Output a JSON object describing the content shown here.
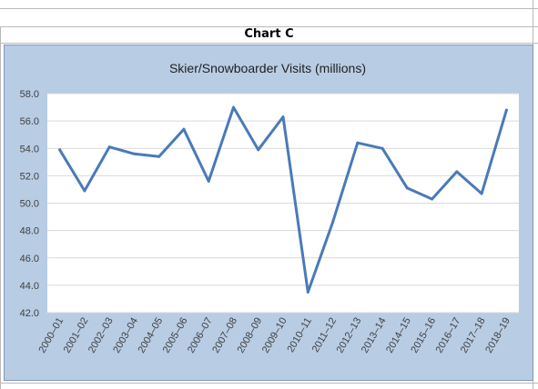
{
  "header": {
    "chart_label": "Chart C"
  },
  "chart_data": {
    "type": "line",
    "title": "Skier/Snowboarder Visits (millions)",
    "xlabel": "",
    "ylabel": "",
    "ylim": [
      42.0,
      58.0
    ],
    "y_ticks": [
      "58.0",
      "56.0",
      "54.0",
      "52.0",
      "50.0",
      "48.0",
      "46.0",
      "44.0",
      "42.0"
    ],
    "grid": true,
    "legend": "none",
    "colors": {
      "line": "#4a7ab8",
      "plot_bg": "#ffffff",
      "chart_bg": "#b8cce4",
      "grid": "#d9d9d9"
    },
    "categories": [
      "2000–01",
      "2001–02",
      "2002–03",
      "2003–04",
      "2004–05",
      "2005–06",
      "2006–07",
      "2007–08",
      "2008–09",
      "2009–10",
      "2010–11",
      "2011–12",
      "2012–13",
      "2013–14",
      "2014–15",
      "2015–16",
      "2016–17",
      "2017–18",
      "2018–19"
    ],
    "values": [
      53.9,
      50.9,
      54.1,
      53.6,
      53.4,
      55.4,
      51.6,
      57.0,
      53.9,
      56.3,
      43.5,
      48.6,
      54.4,
      54.0,
      51.1,
      50.3,
      52.3,
      50.7,
      56.8
    ]
  }
}
